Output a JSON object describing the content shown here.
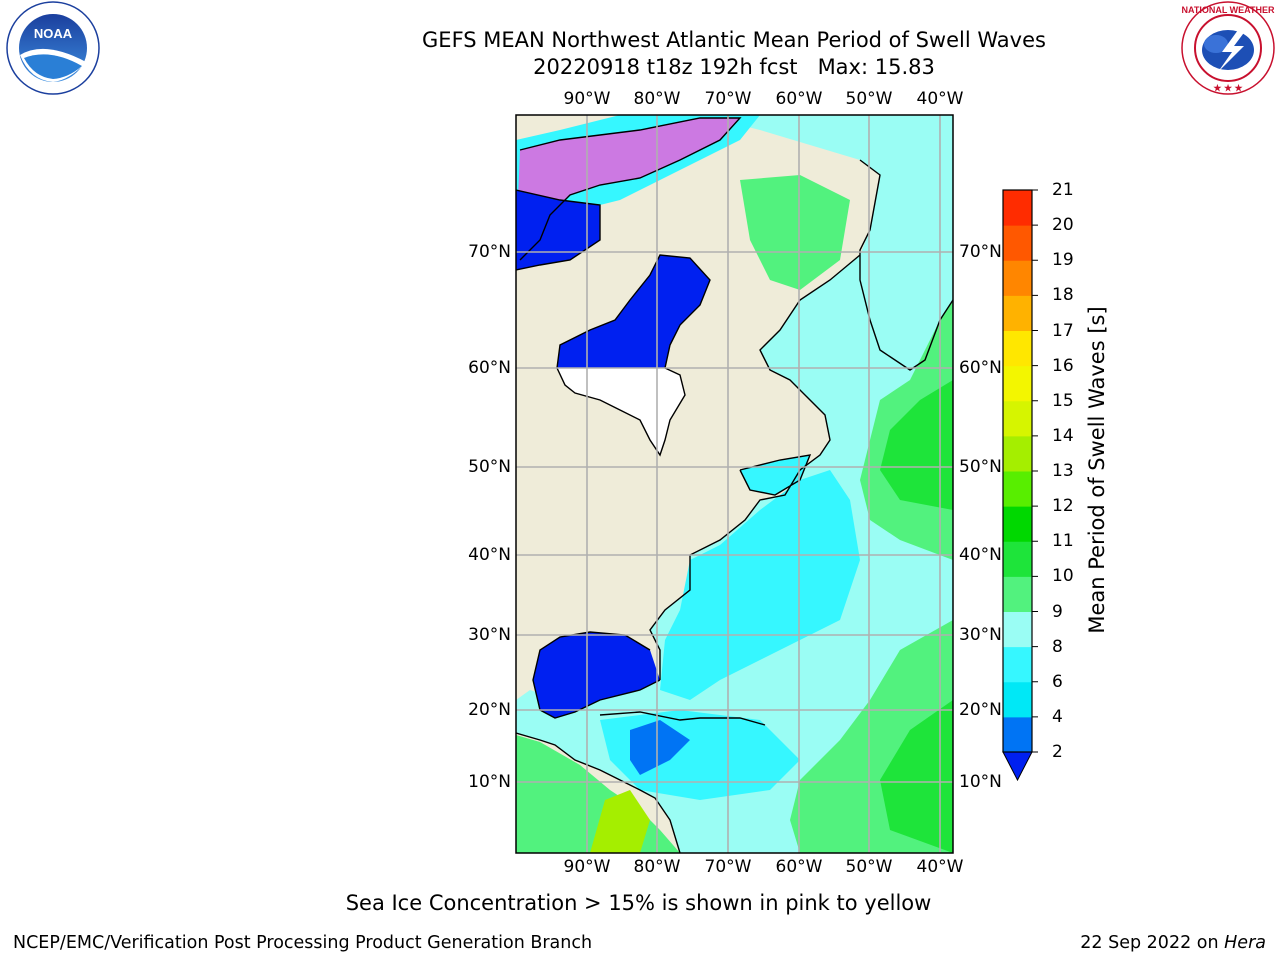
{
  "header": {
    "title_line1": "GEFS MEAN Northwest Atlantic Mean Period of Swell Waves",
    "title_line2": "20220918 t18z 192h fcst   Max: 15.83"
  },
  "logos": {
    "left": {
      "icon": "noaa-logo",
      "text": "NOAA",
      "ring_text": "NATIONAL OCEANIC AND ATMOSPHERIC ADMINISTRATION · U.S. DEPARTMENT OF COMMERCE"
    },
    "right": {
      "icon": "nws-logo",
      "ring_text": "NATIONAL WEATHER SERVICE"
    }
  },
  "map": {
    "lon_ticks": [
      "90°W",
      "80°W",
      "70°W",
      "60°W",
      "50°W",
      "40°W"
    ],
    "lat_ticks": [
      "70°N",
      "60°N",
      "50°N",
      "40°N",
      "30°N",
      "20°N",
      "10°N"
    ],
    "colors": {
      "land": "#efecd9",
      "grid": "#b0b0b0",
      "coast": "#000000"
    }
  },
  "colorbar": {
    "label": "Mean Period of Swell Waves [s]",
    "ticks": [
      "2",
      "4",
      "6",
      "8",
      "9",
      "10",
      "11",
      "12",
      "13",
      "14",
      "15",
      "16",
      "17",
      "18",
      "19",
      "20",
      "21"
    ],
    "colors": [
      "#0020f0",
      "#0074f4",
      "#00e8f6",
      "#36f7ff",
      "#9afdf4",
      "#52f27e",
      "#1ee43a",
      "#00d800",
      "#58ee00",
      "#a5ee00",
      "#d6f500",
      "#f3f600",
      "#ffe700",
      "#ffb200",
      "#ff8600",
      "#ff5800",
      "#ff2c00",
      "#ff0000"
    ]
  },
  "note": "Sea Ice Concentration > 15% is shown in pink to yellow",
  "footer": {
    "left": "NCEP/EMC/Verification Post Processing Product Generation Branch",
    "right_date": "22 Sep 2022 on ",
    "right_host": "Hera"
  }
}
